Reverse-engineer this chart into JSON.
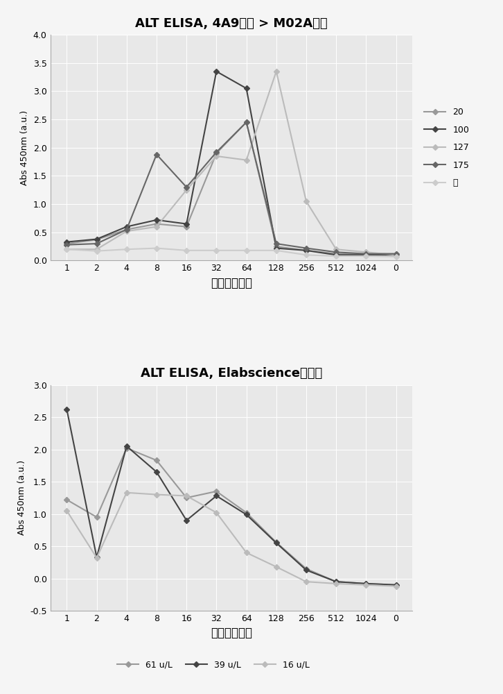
{
  "chart1": {
    "title": "ALT ELISA, 4A9捕获 > M02A检测",
    "xlabel": "血清稀释系数",
    "ylabel": "Abs 450nm (a.u.)",
    "xlabels": [
      "1",
      "2",
      "4",
      "8",
      "16",
      "32",
      "64",
      "128",
      "256",
      "512",
      "1024",
      "0"
    ],
    "ylim": [
      0,
      4
    ],
    "yticks": [
      0,
      0.5,
      1.0,
      1.5,
      2.0,
      2.5,
      3.0,
      3.5,
      4.0
    ],
    "series": [
      {
        "label": "20",
        "color": "#999999",
        "values": [
          0.3,
          0.37,
          0.55,
          0.65,
          0.6,
          1.9,
          2.45,
          0.25,
          0.18,
          0.12,
          0.12,
          0.12
        ]
      },
      {
        "label": "100",
        "color": "#444444",
        "values": [
          0.33,
          0.38,
          0.6,
          0.72,
          0.65,
          3.35,
          3.05,
          0.22,
          0.18,
          0.1,
          0.1,
          0.1
        ]
      },
      {
        "label": "127",
        "color": "#bbbbbb",
        "values": [
          0.2,
          0.2,
          0.52,
          0.6,
          1.25,
          1.85,
          1.78,
          3.35,
          1.05,
          0.2,
          0.15,
          0.1
        ]
      },
      {
        "label": "175",
        "color": "#666666",
        "values": [
          0.28,
          0.3,
          0.55,
          1.88,
          1.3,
          1.92,
          2.45,
          0.3,
          0.22,
          0.15,
          0.12,
          0.12
        ]
      },
      {
        "label": "兔",
        "color": "#cccccc",
        "values": [
          0.2,
          0.17,
          0.2,
          0.22,
          0.18,
          0.18,
          0.18,
          0.18,
          0.1,
          0.08,
          0.08,
          0.07
        ]
      }
    ]
  },
  "chart2": {
    "title": "ALT ELISA, Elabscience试剂盒",
    "xlabel": "血浆稀释系数",
    "ylabel": "Abs 450nm (a.u.)",
    "xlabels": [
      "1",
      "2",
      "4",
      "8",
      "16",
      "32",
      "64",
      "128",
      "256",
      "512",
      "1024",
      "0"
    ],
    "ylim": [
      -0.5,
      3.0
    ],
    "yticks": [
      -0.5,
      0,
      0.5,
      1.0,
      1.5,
      2.0,
      2.5,
      3.0
    ],
    "series": [
      {
        "label": "61 u/L",
        "color": "#999999",
        "values": [
          1.22,
          0.95,
          2.02,
          1.83,
          1.25,
          1.35,
          1.02,
          0.56,
          0.15,
          -0.05,
          -0.08,
          -0.1
        ]
      },
      {
        "label": "39 u/L",
        "color": "#444444",
        "values": [
          2.62,
          0.33,
          2.05,
          1.65,
          0.9,
          1.28,
          0.99,
          0.55,
          0.13,
          -0.05,
          -0.08,
          -0.1
        ]
      },
      {
        "label": "16 u/L",
        "color": "#bbbbbb",
        "values": [
          1.05,
          0.32,
          1.33,
          1.3,
          1.28,
          1.02,
          0.4,
          0.18,
          -0.05,
          -0.08,
          -0.1,
          -0.12
        ]
      }
    ]
  },
  "fig_bg": "#f5f5f5",
  "plot_bg": "#e8e8e8",
  "grid_color": "#ffffff"
}
